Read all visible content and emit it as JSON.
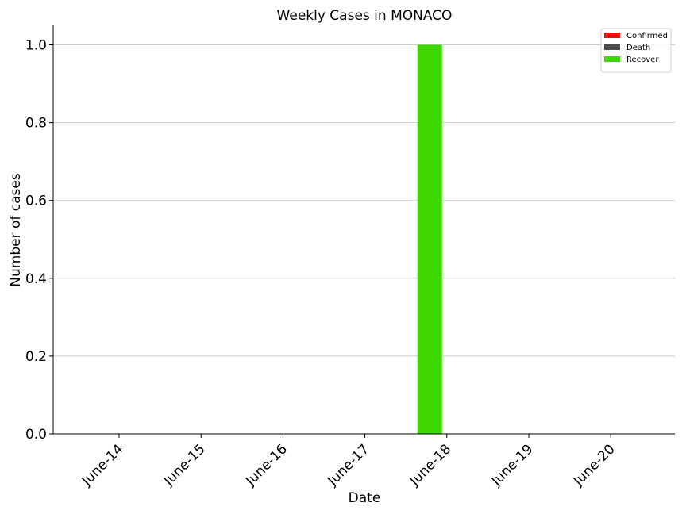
{
  "chart_data": {
    "type": "bar",
    "title": "Weekly Cases in MONACO",
    "xlabel": "Date",
    "ylabel": "Number of cases",
    "categories": [
      "June-14",
      "June-15",
      "June-16",
      "June-17",
      "June-18",
      "June-19",
      "June-20"
    ],
    "series": [
      {
        "name": "Confirmed",
        "color": "#f21010",
        "values": [
          0,
          0,
          0,
          0,
          0,
          0,
          0
        ]
      },
      {
        "name": "Death",
        "color": "#4d4d4d",
        "values": [
          0,
          0,
          0,
          0,
          0,
          0,
          0
        ]
      },
      {
        "name": "Recover",
        "color": "#3ed800",
        "values": [
          0,
          0,
          0,
          0,
          1,
          0,
          0
        ]
      }
    ],
    "ylim": [
      0,
      1.05
    ],
    "yticks": [
      "0.0",
      "0.2",
      "0.4",
      "0.6",
      "0.8",
      "1.0"
    ],
    "grid": "y",
    "legend": "top-right"
  }
}
